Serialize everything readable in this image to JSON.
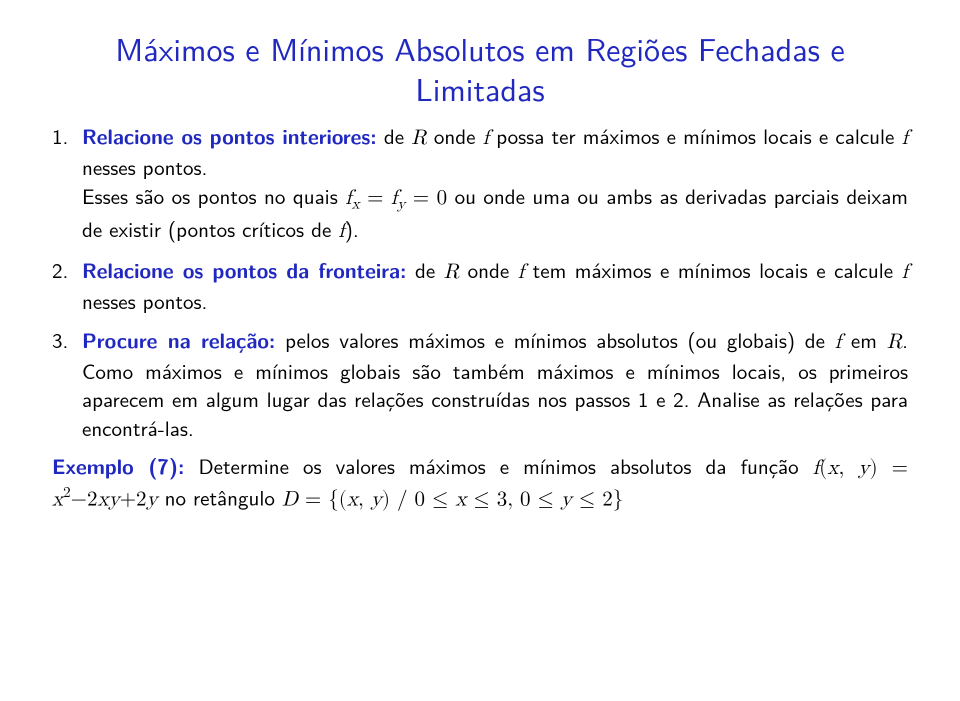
{
  "title_line1": "Máximos e Mínimos Absolutos em Regiões Fechadas e",
  "title_line2": "Limitadas",
  "s1_lead": "Relacione os pontos interiores:",
  "s1a": " de ",
  "s1b": " onde ",
  "s1c": " possa ter máximos e mínimos locais e calcule ",
  "s1d": " nesses pontos.",
  "s1cont_a": "Esses são os pontos no quais ",
  "s1cont_b": " ou onde uma ou ambs as derivadas parciais deixam de existir (pontos críticos de ",
  "s1cont_c": ").",
  "s2_lead": "Relacione os pontos da fronteira:",
  "s2a": " de ",
  "s2b": " onde ",
  "s2c": " tem máximos e mínimos locais e calcule ",
  "s2d": " nesses pontos.",
  "s3_lead": "Procure na relação:",
  "s3a": " pelos valores máximos e mínimos absolutos (ou globais) de ",
  "s3b": " em ",
  "s3c": ". Como máximos e mínimos globais são também máximos e mínimos locais, os primeiros aparecem em algum lugar das relações construídas nos passos 1 e 2. Analise as relações para encontrá-las.",
  "ex_lead": "Exemplo (7):",
  "ex_a": " Determine os valores máximos e mínimos absolutos da função ",
  "ex_b": " no retângulo ",
  "m": {
    "R": "R",
    "f": "f",
    "fx": "f",
    "x": "x",
    "y": "y",
    "eq": " = ",
    "zero": "0",
    "D": "D",
    "two": "2",
    "three": "3",
    "le": " ≤ ",
    "comma": ", ",
    "lpar": "(",
    "rpar": ")",
    "lbrace": "{",
    "rbrace": "}",
    "slash": " / ",
    "minus": "−",
    "plus": "+",
    "twoxy": "2",
    "set_open": "D = {(x, y) / 0 ≤ x ≤ 3, 0 ≤ y ≤ 2}"
  }
}
